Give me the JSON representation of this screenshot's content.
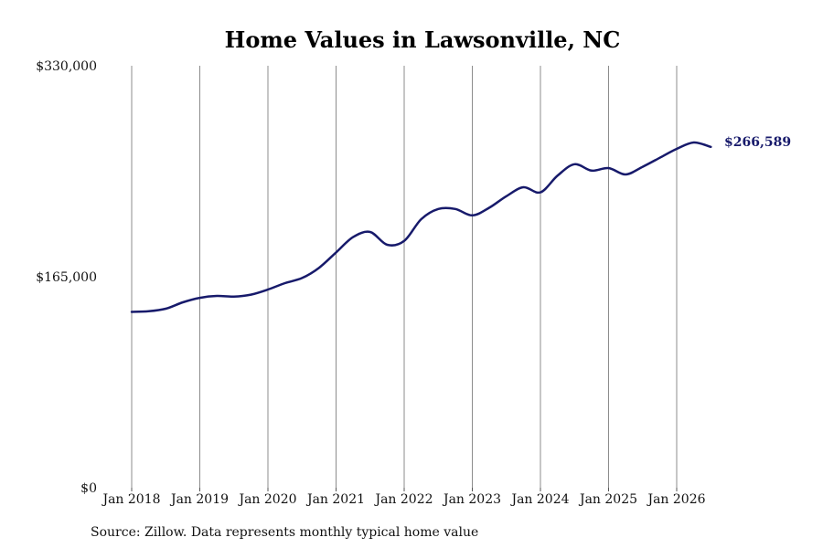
{
  "chart_data": {
    "type": "line",
    "title": "Home Values in Lawsonville, NC",
    "source": "Source: Zillow. Data represents monthly typical home value",
    "end_label": "$266,589",
    "line_color": "#171a6b",
    "grid": "vertical",
    "legend": "none",
    "xlabel": "",
    "ylabel": "",
    "x_ticks": [
      "Jan 2018",
      "Jan 2019",
      "Jan 2020",
      "Jan 2021",
      "Jan 2022",
      "Jan 2023",
      "Jan 2024",
      "Jan 2025",
      "Jan 2026"
    ],
    "y_ticks": [
      {
        "value": 0,
        "label": "$0"
      },
      {
        "value": 165000,
        "label": "$165,000"
      },
      {
        "value": 330000,
        "label": "$330,000"
      }
    ],
    "ylim": [
      0,
      330000
    ],
    "xlim": [
      "2018-01",
      "2026-07"
    ],
    "series": [
      {
        "points": [
          [
            "2018-01",
            137500
          ],
          [
            "2018-04",
            138000
          ],
          [
            "2018-07",
            140000
          ],
          [
            "2018-10",
            145000
          ],
          [
            "2019-01",
            148500
          ],
          [
            "2019-04",
            150000
          ],
          [
            "2019-07",
            149500
          ],
          [
            "2019-10",
            151000
          ],
          [
            "2020-01",
            155000
          ],
          [
            "2020-04",
            160000
          ],
          [
            "2020-07",
            164000
          ],
          [
            "2020-10",
            172000
          ],
          [
            "2021-01",
            184000
          ],
          [
            "2021-04",
            196000
          ],
          [
            "2021-07",
            200000
          ],
          [
            "2021-10",
            190000
          ],
          [
            "2022-01",
            193000
          ],
          [
            "2022-04",
            210000
          ],
          [
            "2022-07",
            218000
          ],
          [
            "2022-10",
            218000
          ],
          [
            "2023-01",
            213000
          ],
          [
            "2023-04",
            219000
          ],
          [
            "2023-07",
            228000
          ],
          [
            "2023-10",
            235000
          ],
          [
            "2024-01",
            231000
          ],
          [
            "2024-04",
            244000
          ],
          [
            "2024-07",
            253000
          ],
          [
            "2024-10",
            248000
          ],
          [
            "2025-01",
            250000
          ],
          [
            "2025-04",
            245000
          ],
          [
            "2025-07",
            251000
          ],
          [
            "2025-10",
            258000
          ],
          [
            "2026-01",
            265000
          ],
          [
            "2026-04",
            270000
          ],
          [
            "2026-07",
            266589
          ]
        ]
      }
    ]
  }
}
